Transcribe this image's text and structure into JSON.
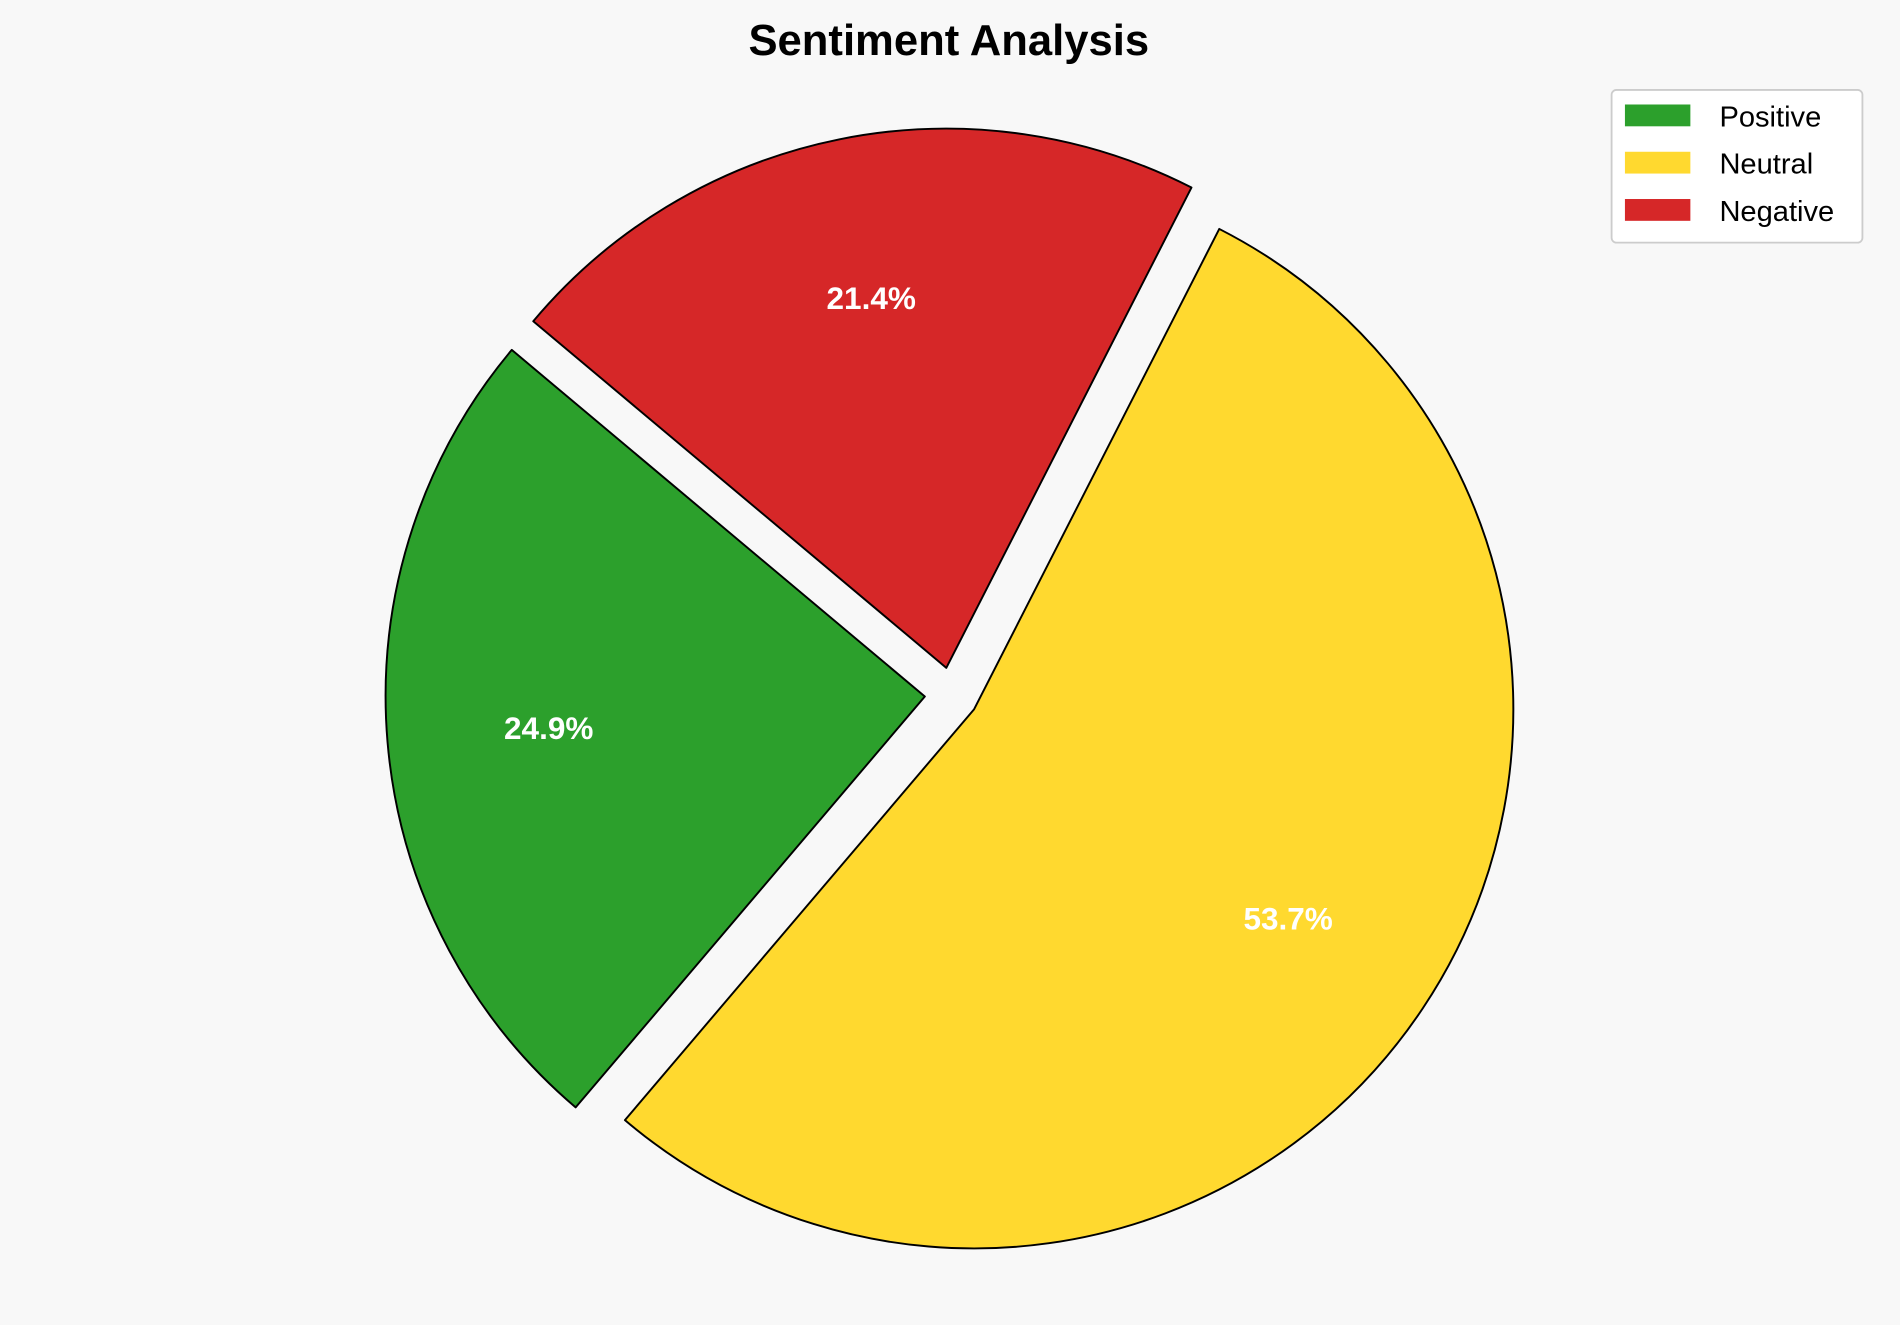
{
  "chart_data": {
    "type": "pie",
    "title": "Sentiment Analysis",
    "labels": [
      "Positive",
      "Neutral",
      "Negative"
    ],
    "values": [
      24.9,
      53.7,
      21.4
    ],
    "value_labels": [
      "24.9%",
      "53.7%",
      "21.4%"
    ],
    "colors": [
      "#2ca02c",
      "#ffd92f",
      "#d62728"
    ],
    "start_angle_deg": 140,
    "explode": [
      0.05,
      0.05,
      0.05
    ],
    "legend_position": "top-right"
  }
}
